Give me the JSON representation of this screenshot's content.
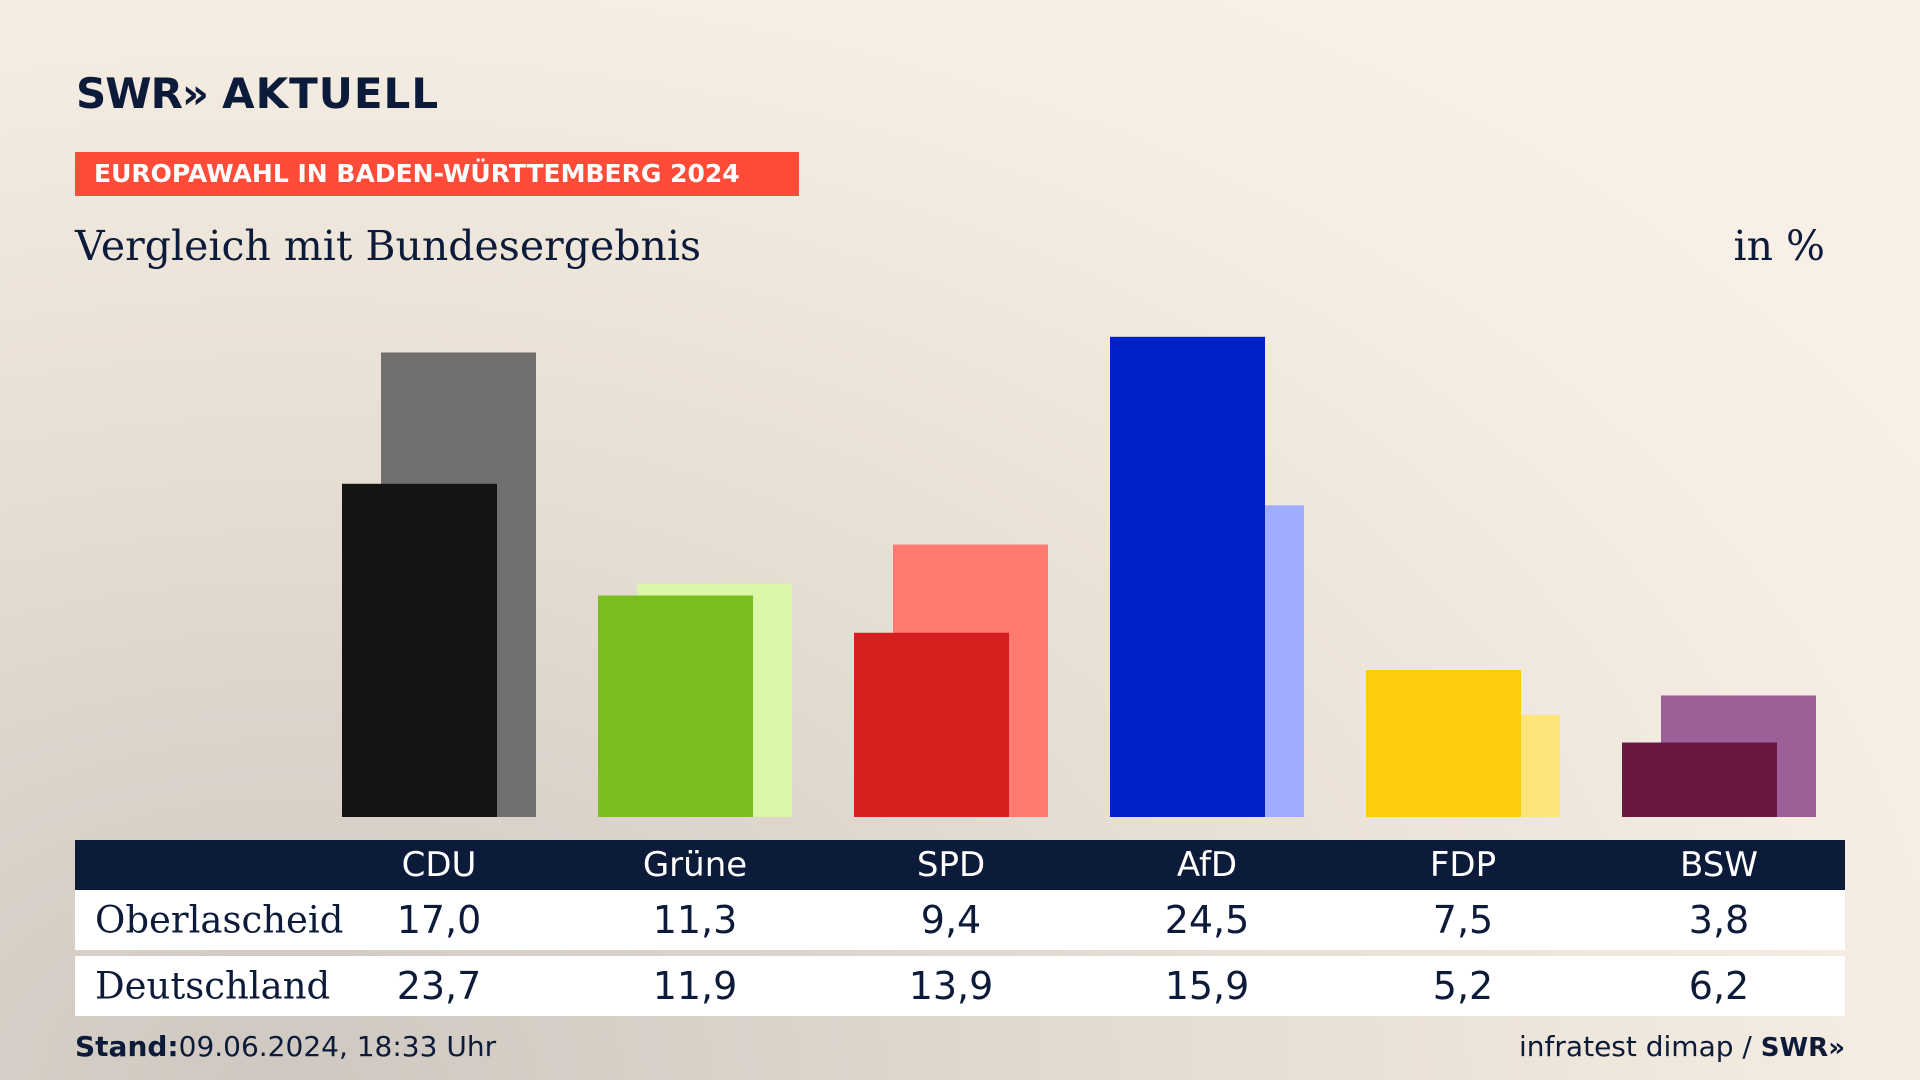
{
  "header": {
    "logo_text": "SWR",
    "logo_arrows": "»",
    "logo_suffix": "AKTUELL",
    "banner": "EUROPAWAHL IN BADEN-WÜRTTEMBERG 2024",
    "subtitle": "Vergleich mit Bundesergebnis",
    "unit": "in %"
  },
  "chart_data": {
    "type": "bar",
    "categories": [
      "CDU",
      "Grüne",
      "SPD",
      "AfD",
      "FDP",
      "BSW"
    ],
    "series": [
      {
        "name": "Oberlascheid",
        "values": [
          17.0,
          11.3,
          9.4,
          24.5,
          7.5,
          3.8
        ],
        "labels": [
          "17,0",
          "11,3",
          "9,4",
          "24,5",
          "7,5",
          "3,8"
        ]
      },
      {
        "name": "Deutschland",
        "values": [
          23.7,
          11.9,
          13.9,
          15.9,
          5.2,
          6.2
        ],
        "labels": [
          "23,7",
          "11,9",
          "13,9",
          "15,9",
          "5,2",
          "6,2"
        ]
      }
    ],
    "colors_front": [
      "#141414",
      "#79bd1e",
      "#d61f1f",
      "#0021c8",
      "#ffcc0d",
      "#6a1842"
    ],
    "colors_back": [
      "#72706e",
      "#d9f7a6",
      "#ff7a70",
      "#9facff",
      "#ffe47a",
      "#9c5f97"
    ],
    "ylim": [
      0,
      25
    ]
  },
  "footer": {
    "stand_label": "Stand:",
    "stand_value": "09.06.2024, 18:33 Uhr",
    "source": "infratest dimap /",
    "source_logo": "SWR»"
  }
}
